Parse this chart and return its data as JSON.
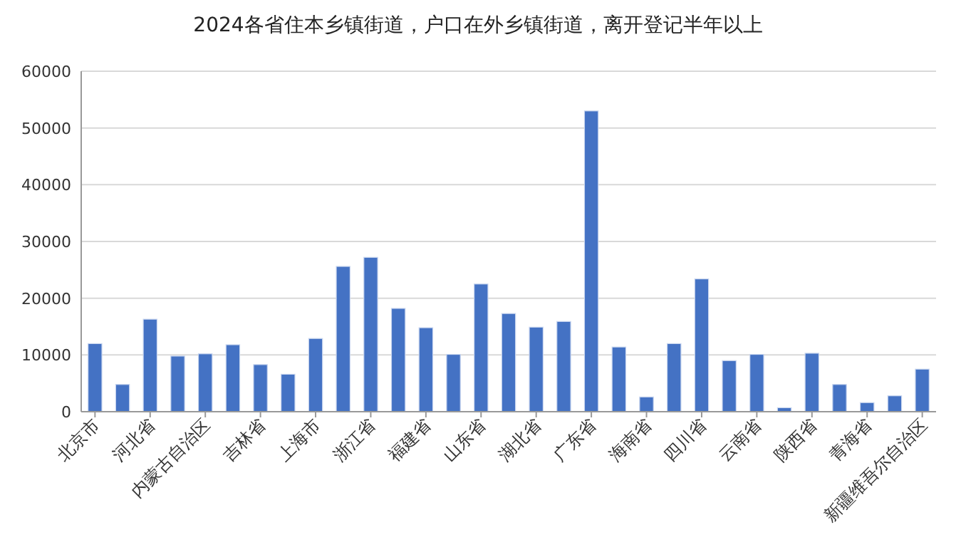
{
  "chart_data": {
    "type": "bar",
    "title": "2024各省住本乡镇街道，户口在外乡镇街道，离开登记半年以上",
    "categories": [
      "北京市",
      null,
      "河北省",
      null,
      "内蒙古自治区",
      null,
      "吉林省",
      null,
      "上海市",
      null,
      "浙江省",
      null,
      "福建省",
      null,
      "山东省",
      null,
      "湖北省",
      null,
      "广东省",
      null,
      "海南省",
      null,
      "四川省",
      null,
      "云南省",
      null,
      "陕西省",
      null,
      "青海省",
      null,
      "新疆维吾尔自治区"
    ],
    "values": [
      12000,
      4800,
      16300,
      9800,
      10200,
      11800,
      8300,
      6600,
      12900,
      25600,
      27200,
      18200,
      14800,
      10100,
      22500,
      17300,
      14900,
      15900,
      53000,
      11400,
      2600,
      12000,
      23400,
      9000,
      10100,
      700,
      10300,
      4800,
      1600,
      2800,
      7500
    ],
    "color": "#4472c4",
    "ylim": [
      0,
      60000
    ],
    "yticks": [
      0,
      10000,
      20000,
      30000,
      40000,
      50000,
      60000
    ],
    "grid": "y"
  }
}
